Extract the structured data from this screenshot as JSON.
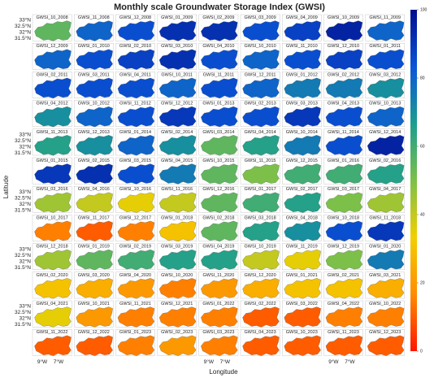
{
  "title": "Monthly scale Groundwater Storage Index (GWSI)",
  "x_label": "Longitude",
  "y_label": "Latitude",
  "lat_ticks": [
    "33°N",
    "32.5°N",
    "32°N",
    "31.5°N"
  ],
  "lon_ticks": [
    "9°W",
    "7°W"
  ],
  "colorbar": {
    "lim": [
      0,
      100
    ],
    "ticks": [
      0,
      20,
      40,
      60,
      80,
      100
    ],
    "colormap": [
      "#ff1400",
      "#ff8c00",
      "#f2cf00",
      "#7cc04a",
      "#1a9e8f",
      "#0b55d8",
      "#000d8c"
    ]
  },
  "panels": [
    {
      "label": "GWSI_10_2008",
      "value": 55
    },
    {
      "label": "GWSI_11_2008",
      "value": 80
    },
    {
      "label": "GWSI_12_2008",
      "value": 85
    },
    {
      "label": "GWSI_01_2009",
      "value": 92
    },
    {
      "label": "GWSI_02_2009",
      "value": 92
    },
    {
      "label": "GWSI_03_2009",
      "value": 85
    },
    {
      "label": "GWSI_04_2009",
      "value": 88
    },
    {
      "label": "GWSI_10_2009",
      "value": 95
    },
    {
      "label": "GWSI_11_2009",
      "value": 80
    },
    {
      "label": "GWSI_12_2009",
      "value": 80
    },
    {
      "label": "GWSI_01_2010",
      "value": 85
    },
    {
      "label": "GWSI_02_2010",
      "value": 88
    },
    {
      "label": "GWSI_03_2010",
      "value": 92
    },
    {
      "label": "GWSI_04_2010",
      "value": 85
    },
    {
      "label": "GWSI_10_2010",
      "value": 80
    },
    {
      "label": "GWSI_11_2010",
      "value": 85
    },
    {
      "label": "GWSI_12_2010",
      "value": 88
    },
    {
      "label": "GWSI_01_2011",
      "value": 85
    },
    {
      "label": "GWSI_02_2011",
      "value": 85
    },
    {
      "label": "GWSI_03_2011",
      "value": 85
    },
    {
      "label": "GWSI_04_2011",
      "value": 85
    },
    {
      "label": "GWSI_10_2011",
      "value": 80
    },
    {
      "label": "GWSI_11_2011",
      "value": 85
    },
    {
      "label": "GWSI_12_2011",
      "value": 80
    },
    {
      "label": "GWSI_01_2012",
      "value": 75
    },
    {
      "label": "GWSI_02_2012",
      "value": 75
    },
    {
      "label": "GWSI_03_2012",
      "value": 70
    },
    {
      "label": "GWSI_04_2012",
      "value": 70
    },
    {
      "label": "GWSI_10_2012",
      "value": 80
    },
    {
      "label": "GWSI_11_2012",
      "value": 85
    },
    {
      "label": "GWSI_12_2012",
      "value": 90
    },
    {
      "label": "GWSI_01_2013",
      "value": 85
    },
    {
      "label": "GWSI_02_2013",
      "value": 85
    },
    {
      "label": "GWSI_03_2013",
      "value": 90
    },
    {
      "label": "GWSI_04_2013",
      "value": 85
    },
    {
      "label": "GWSI_10_2013",
      "value": 80
    },
    {
      "label": "GWSI_11_2013",
      "value": 65
    },
    {
      "label": "GWSI_12_2013",
      "value": 70
    },
    {
      "label": "GWSI_01_2014",
      "value": 80
    },
    {
      "label": "GWSI_02_2014",
      "value": 70
    },
    {
      "label": "GWSI_03_2014",
      "value": 55
    },
    {
      "label": "GWSI_04_2014",
      "value": 65
    },
    {
      "label": "GWSI_10_2014",
      "value": 75
    },
    {
      "label": "GWSI_11_2014",
      "value": 85
    },
    {
      "label": "GWSI_12_2014",
      "value": 95
    },
    {
      "label": "GWSI_01_2015",
      "value": 90
    },
    {
      "label": "GWSI_02_2015",
      "value": 92
    },
    {
      "label": "GWSI_03_2015",
      "value": 85
    },
    {
      "label": "GWSI_04_2015",
      "value": 75
    },
    {
      "label": "GWSI_10_2015",
      "value": 55
    },
    {
      "label": "GWSI_11_2015",
      "value": 50
    },
    {
      "label": "GWSI_12_2015",
      "value": 60
    },
    {
      "label": "GWSI_01_2016",
      "value": 60
    },
    {
      "label": "GWSI_02_2016",
      "value": 65
    },
    {
      "label": "GWSI_03_2016",
      "value": 45
    },
    {
      "label": "GWSI_04_2016",
      "value": 40
    },
    {
      "label": "GWSI_10_2016",
      "value": 35
    },
    {
      "label": "GWSI_11_2016",
      "value": 40
    },
    {
      "label": "GWSI_12_2016",
      "value": 55
    },
    {
      "label": "GWSI_01_2017",
      "value": 60
    },
    {
      "label": "GWSI_02_2017",
      "value": 65
    },
    {
      "label": "GWSI_03_2017",
      "value": 50
    },
    {
      "label": "GWSI_04_2017",
      "value": 45
    },
    {
      "label": "GWSI_10_2017",
      "value": 15
    },
    {
      "label": "GWSI_11_2017",
      "value": 10
    },
    {
      "label": "GWSI_12_2017",
      "value": 15
    },
    {
      "label": "GWSI_01_2018",
      "value": 30
    },
    {
      "label": "GWSI_02_2018",
      "value": 55
    },
    {
      "label": "GWSI_03_2018",
      "value": 65
    },
    {
      "label": "GWSI_04_2018",
      "value": 70
    },
    {
      "label": "GWSI_10_2018",
      "value": 85
    },
    {
      "label": "GWSI_11_2018",
      "value": 90
    },
    {
      "label": "GWSI_12_2018",
      "value": 45
    },
    {
      "label": "GWSI_01_2019",
      "value": 55
    },
    {
      "label": "GWSI_02_2019",
      "value": 60
    },
    {
      "label": "GWSI_03_2019",
      "value": 65
    },
    {
      "label": "GWSI_04_2019",
      "value": 65
    },
    {
      "label": "GWSI_10_2019",
      "value": 40
    },
    {
      "label": "GWSI_11_2019",
      "value": 35
    },
    {
      "label": "GWSI_12_2019",
      "value": 50
    },
    {
      "label": "GWSI_01_2020",
      "value": 75
    },
    {
      "label": "GWSI_02_2020",
      "value": 30
    },
    {
      "label": "GWSI_03_2020",
      "value": 25
    },
    {
      "label": "GWSI_04_2020",
      "value": 20
    },
    {
      "label": "GWSI_10_2020",
      "value": 15
    },
    {
      "label": "GWSI_11_2020",
      "value": 20
    },
    {
      "label": "GWSI_12_2020",
      "value": 25
    },
    {
      "label": "GWSI_01_2021",
      "value": 30
    },
    {
      "label": "GWSI_02_2021",
      "value": 30
    },
    {
      "label": "GWSI_03_2021",
      "value": 25
    },
    {
      "label": "GWSI_04_2021",
      "value": 35
    },
    {
      "label": "GWSI_10_2021",
      "value": 20
    },
    {
      "label": "GWSI_11_2021",
      "value": 15
    },
    {
      "label": "GWSI_12_2021",
      "value": 15
    },
    {
      "label": "GWSI_01_2022",
      "value": 15
    },
    {
      "label": "GWSI_02_2022",
      "value": 10
    },
    {
      "label": "GWSI_03_2022",
      "value": 10
    },
    {
      "label": "GWSI_04_2022",
      "value": 15
    },
    {
      "label": "GWSI_10_2022",
      "value": 15
    },
    {
      "label": "GWSI_11_2022",
      "value": 10
    },
    {
      "label": "GWSI_12_2022",
      "value": 10
    },
    {
      "label": "GWSI_01_2023",
      "value": 15
    },
    {
      "label": "GWSI_02_2023",
      "value": 20
    },
    {
      "label": "GWSI_03_2023",
      "value": 15
    },
    {
      "label": "GWSI_04_2023",
      "value": 10
    },
    {
      "label": "GWSI_10_2023",
      "value": 10
    },
    {
      "label": "GWSI_11_2023",
      "value": 10
    },
    {
      "label": "GWSI_12_2023",
      "value": 10
    }
  ]
}
